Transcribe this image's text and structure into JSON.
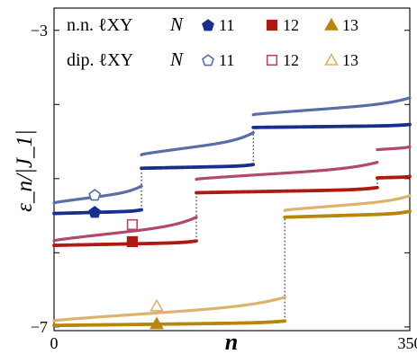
{
  "chart_data": {
    "type": "scatter",
    "xlabel": "n",
    "ylabel": "ε_n/|J_1|",
    "xlim": [
      0,
      350
    ],
    "ylim": [
      -7.05,
      -2.7
    ],
    "x_ticks": [
      {
        "value": 0,
        "label": "0"
      },
      {
        "value": 350,
        "label": "350"
      }
    ],
    "y_ticks": [
      {
        "value": -3,
        "label": "−3"
      },
      {
        "value": -7,
        "label": "−7"
      }
    ],
    "y_minor_ticks": [
      -4,
      -5,
      -6
    ],
    "grid": false,
    "legend": {
      "placement": "top-left",
      "rows": [
        {
          "label": "n.n. ℓXY",
          "N_label": "N",
          "entries": [
            {
              "series": "nn_11",
              "text": "11"
            },
            {
              "series": "nn_12",
              "text": "12"
            },
            {
              "series": "nn_13",
              "text": "13"
            }
          ]
        },
        {
          "label": "dip. ℓXY",
          "N_label": "N",
          "entries": [
            {
              "series": "dip_11",
              "text": "11"
            },
            {
              "series": "dip_12",
              "text": "12"
            },
            {
              "series": "dip_13",
              "text": "13"
            }
          ]
        }
      ]
    },
    "series": [
      {
        "id": "nn_11",
        "marker": "pentagon",
        "filled": true,
        "color": "#1a2e8c",
        "bands": [
          {
            "x": [
              0,
              86
            ],
            "y": [
              -5.47,
              -5.42
            ]
          },
          {
            "x": [
              86,
              196
            ],
            "y": [
              -4.86,
              -4.81
            ]
          },
          {
            "x": [
              196,
              350
            ],
            "y": [
              -4.31,
              -4.27
            ]
          }
        ],
        "marker_at": {
          "x": 40,
          "y": -5.45
        }
      },
      {
        "id": "nn_12",
        "marker": "square",
        "filled": true,
        "color": "#ae1a12",
        "bands": [
          {
            "x": [
              0,
              140
            ],
            "y": [
              -5.9,
              -5.84
            ]
          },
          {
            "x": [
              140,
              318
            ],
            "y": [
              -5.19,
              -5.12
            ]
          },
          {
            "x": [
              318,
              350
            ],
            "y": [
              -4.99,
              -4.97
            ]
          }
        ],
        "marker_at": {
          "x": 77,
          "y": -5.85
        }
      },
      {
        "id": "nn_13",
        "marker": "triangle",
        "filled": true,
        "color": "#b8860b",
        "bands": [
          {
            "x": [
              0,
              227
            ],
            "y": [
              -6.98,
              -6.92
            ]
          },
          {
            "x": [
              227,
              350
            ],
            "y": [
              -5.52,
              -5.44
            ]
          }
        ],
        "marker_at": {
          "x": 101,
          "y": -6.96
        }
      },
      {
        "id": "dip_11",
        "marker": "pentagon",
        "filled": false,
        "color": "#5a6ea6",
        "bands": [
          {
            "x": [
              0,
              86
            ],
            "y": [
              -5.33,
              -5.1
            ]
          },
          {
            "x": [
              86,
              196
            ],
            "y": [
              -4.68,
              -4.38
            ]
          },
          {
            "x": [
              196,
              350
            ],
            "y": [
              -4.14,
              -3.91
            ]
          }
        ],
        "marker_at": {
          "x": 40,
          "y": -5.22
        }
      },
      {
        "id": "dip_12",
        "marker": "square",
        "filled": false,
        "color": "#b14a6b",
        "bands": [
          {
            "x": [
              0,
              140
            ],
            "y": [
              -5.84,
              -5.52
            ]
          },
          {
            "x": [
              140,
              318
            ],
            "y": [
              -5.01,
              -4.78
            ]
          },
          {
            "x": [
              318,
              350
            ],
            "y": [
              -4.61,
              -4.57
            ]
          }
        ],
        "marker_at": {
          "x": 77,
          "y": -5.62
        }
      },
      {
        "id": "dip_13",
        "marker": "triangle",
        "filled": false,
        "color": "#dcb36c",
        "bands": [
          {
            "x": [
              0,
              227
            ],
            "y": [
              -6.92,
              -6.6
            ]
          },
          {
            "x": [
              227,
              350
            ],
            "y": [
              -5.43,
              -5.23
            ]
          }
        ],
        "marker_at": {
          "x": 101,
          "y": -6.72
        }
      }
    ]
  }
}
